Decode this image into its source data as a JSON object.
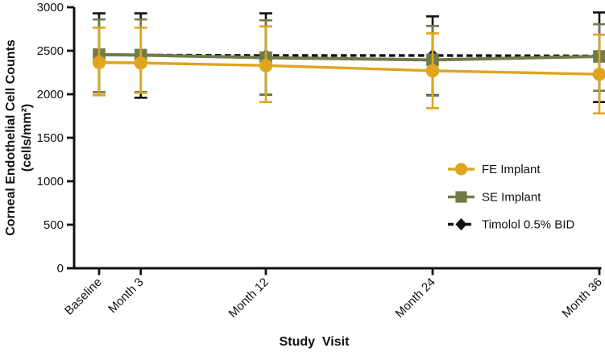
{
  "chart_data": {
    "type": "line",
    "title": "",
    "xlabel": "Study  Visit",
    "ylabel_line1": "Corneal Endothelial Cell Counts",
    "ylabel_line2": "(cells/mm²)",
    "categories": [
      "Baseline",
      "Month 3",
      "Month 12",
      "Month 24",
      "Month 36"
    ],
    "x_months": [
      0,
      3,
      12,
      24,
      36
    ],
    "ylim": [
      0,
      3000
    ],
    "yticks": [
      0,
      500,
      1000,
      1500,
      2000,
      2500,
      3000
    ],
    "grid": false,
    "legend_position": "middle-right",
    "axis_color": "#111111",
    "series": [
      {
        "name": "FE Implant",
        "marker": "circle",
        "line_style": "solid",
        "color": "#DFA51E",
        "values": [
          2365,
          2360,
          2330,
          2270,
          2230
        ],
        "error_low": [
          1990,
          2015,
          1910,
          1840,
          1780
        ],
        "error_high": [
          2765,
          2765,
          2780,
          2700,
          2685
        ]
      },
      {
        "name": "SE Implant",
        "marker": "square",
        "line_style": "solid",
        "color": "#6F7C4A",
        "values": [
          2455,
          2450,
          2420,
          2395,
          2435
        ],
        "error_low": [
          2025,
          2025,
          1995,
          1985,
          2040
        ],
        "error_high": [
          2860,
          2860,
          2850,
          2785,
          2805
        ]
      },
      {
        "name": "Timolol 0.5% BID",
        "marker": "diamond",
        "line_style": "dashed",
        "color": "#111111",
        "values": [
          2455,
          2450,
          2445,
          2445,
          2440
        ],
        "error_low": [
          1990,
          1960,
          1995,
          1990,
          1910
        ],
        "error_high": [
          2930,
          2930,
          2930,
          2895,
          2940
        ]
      }
    ]
  }
}
